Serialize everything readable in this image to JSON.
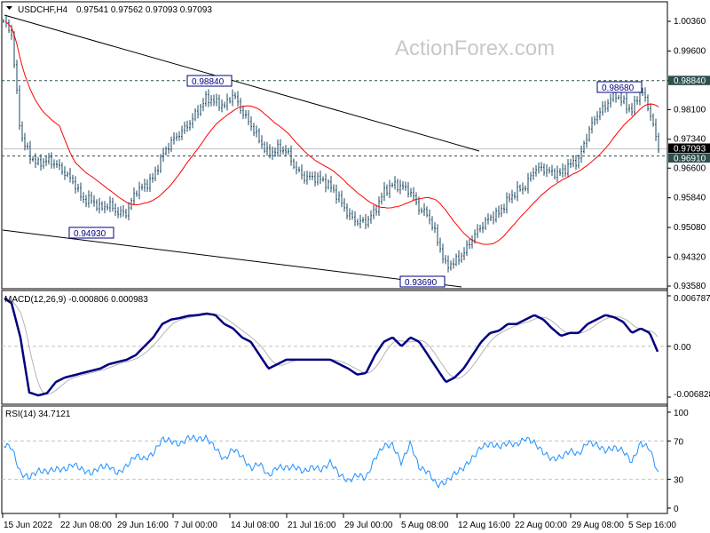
{
  "header": {
    "symbol": "USDCHF,H4",
    "ohlc": "0.97541 0.97562 0.97093 0.97093",
    "menu_icon": "triangle-down-icon"
  },
  "watermark": "ActionForex.com",
  "colors": {
    "bars": "#1e4a63",
    "moving_average": "#ff0000",
    "macd": "#000080",
    "signal": "#b4b4b4",
    "rsi": "#1e90ff",
    "label_highlight": "#2f4f4f",
    "current_price_bg": "#000000"
  },
  "chart_data": [
    {
      "type": "ohlc",
      "title": "USDCHF,H4",
      "ylim": [
        0.9358,
        1.0036
      ],
      "y_ticks": [
        "1.00360",
        "0.99600",
        "0.98840",
        "0.98100",
        "0.97340",
        "0.96600",
        "0.95840",
        "0.95080",
        "0.94320",
        "0.93580"
      ],
      "x_ticks": [
        "15 Jun 2022",
        "22 Jun 08:00",
        "29 Jun 16:00",
        "7 Jul 00:00",
        "14 Jul 08:00",
        "21 Jul 16:00",
        "29 Jul 00:00",
        "5 Aug 08:00",
        "12 Aug 16:00",
        "22 Aug 00:00",
        "29 Aug 08:00",
        "5 Sep 16:00"
      ],
      "closes": [
        1.004,
        1.0004,
        0.9749,
        0.9692,
        0.967,
        0.9681,
        0.967,
        0.9647,
        0.9624,
        0.9579,
        0.9579,
        0.9556,
        0.9567,
        0.9545,
        0.9545,
        0.9601,
        0.9613,
        0.9636,
        0.9692,
        0.9727,
        0.9749,
        0.9772,
        0.9806,
        0.984,
        0.9829,
        0.9818,
        0.985,
        0.9805,
        0.977,
        0.973,
        0.9695,
        0.971,
        0.9705,
        0.966,
        0.9636,
        0.9636,
        0.963,
        0.9612,
        0.958,
        0.954,
        0.9522,
        0.9522,
        0.955,
        0.96,
        0.9618,
        0.9613,
        0.96,
        0.9556,
        0.954,
        0.948,
        0.9408,
        0.942,
        0.9442,
        0.9481,
        0.9511,
        0.9533,
        0.9545,
        0.9579,
        0.9601,
        0.9613,
        0.9658,
        0.9658,
        0.9647,
        0.9647,
        0.967,
        0.9681,
        0.9749,
        0.9795,
        0.9818,
        0.9852,
        0.9829,
        0.9806,
        0.9863,
        0.9806,
        0.9709
      ],
      "horizontal_levels": [
        {
          "value": 0.9884,
          "label": "0.98840",
          "style": "dashed"
        },
        {
          "value": 0.9691,
          "label": "0.96910",
          "style": "dashed"
        },
        {
          "value": 0.97093,
          "label": "0.97093",
          "style": "current-price"
        }
      ],
      "annotations": [
        "0.98840",
        "0.94930",
        "0.93690",
        "0.98680"
      ],
      "trendlines": [
        {
          "from": [
            "15 Jun 2022",
            1.005
          ],
          "to": [
            "12 Aug 16:00",
            0.97
          ]
        },
        {
          "from": [
            "15 Jun 2022",
            0.95
          ],
          "to": [
            "12 Aug 16:00",
            0.9358
          ]
        }
      ]
    },
    {
      "type": "line",
      "title": "MACD(12,26,9) -0.000806 0.000983",
      "ylim": [
        -0.006828,
        0.006787
      ],
      "y_ticks": [
        "0.006787",
        "0.00",
        "-0.006828"
      ],
      "series": [
        {
          "values": [
            0.0066,
            0.0058,
            0.0012,
            -0.0062,
            -0.0066,
            -0.0063,
            -0.0048,
            -0.0042,
            -0.0039,
            -0.0036,
            -0.0033,
            -0.003,
            -0.0024,
            -0.0021,
            -0.0018,
            -0.0012,
            0.0,
            0.0012,
            0.003,
            0.0036,
            0.0038,
            0.0041,
            0.0042,
            0.0044,
            0.0042,
            0.003,
            0.0024,
            0.0012,
            0.0006,
            -0.0012,
            -0.003,
            -0.0024,
            -0.0018,
            -0.0018,
            -0.0018,
            -0.0018,
            -0.0018,
            -0.0018,
            -0.0024,
            -0.003,
            -0.0038,
            -0.0036,
            -0.0012,
            0.0006,
            0.0012,
            0.0,
            0.0012,
            0.0006,
            -0.0012,
            -0.003,
            -0.0048,
            -0.0042,
            -0.003,
            -0.0012,
            0.0006,
            0.0018,
            0.0021,
            0.003,
            0.003,
            0.0036,
            0.0042,
            0.0036,
            0.0024,
            0.0014,
            0.0018,
            0.0018,
            0.003,
            0.0036,
            0.0042,
            0.0039,
            0.0033,
            0.0018,
            0.0024,
            0.0018,
            -0.001
          ]
        }
      ]
    },
    {
      "type": "line",
      "title": "RSI(14) 34.7121",
      "ylim": [
        0,
        100
      ],
      "y_ticks": [
        "100",
        "70",
        "30",
        "0"
      ],
      "levels": [
        70,
        30
      ],
      "series": [
        {
          "values": [
            66,
            64,
            36,
            32,
            39,
            38,
            41,
            40,
            46,
            40,
            36,
            43,
            44,
            36,
            44,
            55,
            51,
            57,
            72,
            70,
            66,
            74,
            72,
            73,
            63,
            50,
            62,
            54,
            41,
            47,
            33,
            43,
            42,
            43,
            38,
            43,
            40,
            48,
            35,
            28,
            35,
            31,
            52,
            65,
            66,
            47,
            68,
            42,
            38,
            24,
            27,
            36,
            42,
            52,
            64,
            67,
            64,
            68,
            66,
            73,
            68,
            58,
            51,
            53,
            60,
            56,
            69,
            66,
            60,
            63,
            60,
            48,
            68,
            62,
            35
          ]
        }
      ]
    }
  ]
}
